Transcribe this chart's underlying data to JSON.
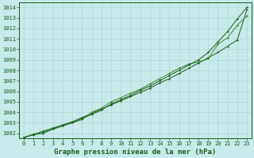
{
  "title": "Graphe pression niveau de la mer (hPa)",
  "ylabel_range": [
    1001.5,
    1014.5
  ],
  "yticks": [
    1002,
    1003,
    1004,
    1005,
    1006,
    1007,
    1008,
    1009,
    1010,
    1011,
    1012,
    1013,
    1014
  ],
  "xticks": [
    0,
    1,
    2,
    3,
    4,
    5,
    6,
    7,
    8,
    9,
    10,
    11,
    12,
    13,
    14,
    15,
    16,
    17,
    18,
    19,
    20,
    21,
    22,
    23
  ],
  "background_color": "#c8eaea",
  "grid_color": "#b0d0d0",
  "line_color": "#1a5c1a",
  "line_color2": "#2d8c2d",
  "series1": [
    [
      0,
      1001.6
    ],
    [
      1,
      1001.9
    ],
    [
      2,
      1002.2
    ],
    [
      3,
      1002.5
    ],
    [
      4,
      1002.8
    ],
    [
      5,
      1003.1
    ],
    [
      6,
      1003.5
    ],
    [
      7,
      1003.9
    ],
    [
      8,
      1004.3
    ],
    [
      9,
      1004.7
    ],
    [
      10,
      1005.1
    ],
    [
      11,
      1005.5
    ],
    [
      12,
      1005.9
    ],
    [
      13,
      1006.3
    ],
    [
      14,
      1006.8
    ],
    [
      15,
      1007.2
    ],
    [
      16,
      1007.7
    ],
    [
      17,
      1008.2
    ],
    [
      18,
      1008.7
    ],
    [
      19,
      1009.2
    ],
    [
      20,
      1009.7
    ],
    [
      21,
      1010.3
    ],
    [
      22,
      1010.9
    ],
    [
      23,
      1013.8
    ]
  ],
  "series2": [
    [
      0,
      1001.6
    ],
    [
      1,
      1001.9
    ],
    [
      2,
      1002.1
    ],
    [
      3,
      1002.4
    ],
    [
      4,
      1002.7
    ],
    [
      5,
      1003.0
    ],
    [
      6,
      1003.3
    ],
    [
      7,
      1004.0
    ],
    [
      8,
      1004.4
    ],
    [
      9,
      1005.0
    ],
    [
      10,
      1005.4
    ],
    [
      11,
      1005.8
    ],
    [
      12,
      1006.2
    ],
    [
      13,
      1006.7
    ],
    [
      14,
      1007.2
    ],
    [
      15,
      1007.7
    ],
    [
      16,
      1008.2
    ],
    [
      17,
      1008.6
    ],
    [
      18,
      1008.8
    ],
    [
      19,
      1009.1
    ],
    [
      20,
      1010.5
    ],
    [
      21,
      1011.1
    ],
    [
      22,
      1012.3
    ],
    [
      23,
      1013.2
    ]
  ],
  "series3": [
    [
      0,
      1001.6
    ],
    [
      1,
      1001.85
    ],
    [
      2,
      1002.0
    ],
    [
      3,
      1002.4
    ],
    [
      4,
      1002.7
    ],
    [
      5,
      1003.0
    ],
    [
      6,
      1003.4
    ],
    [
      7,
      1003.8
    ],
    [
      8,
      1004.2
    ],
    [
      9,
      1004.8
    ],
    [
      10,
      1005.2
    ],
    [
      11,
      1005.6
    ],
    [
      12,
      1006.1
    ],
    [
      13,
      1006.5
    ],
    [
      14,
      1007.0
    ],
    [
      15,
      1007.5
    ],
    [
      16,
      1008.0
    ],
    [
      17,
      1008.5
    ],
    [
      18,
      1009.0
    ],
    [
      19,
      1009.7
    ],
    [
      20,
      1010.7
    ],
    [
      21,
      1011.7
    ],
    [
      22,
      1012.9
    ],
    [
      23,
      1014.0
    ]
  ],
  "title_fontsize": 6.5,
  "tick_fontsize": 5.0,
  "figsize": [
    3.2,
    2.0
  ],
  "dpi": 100
}
